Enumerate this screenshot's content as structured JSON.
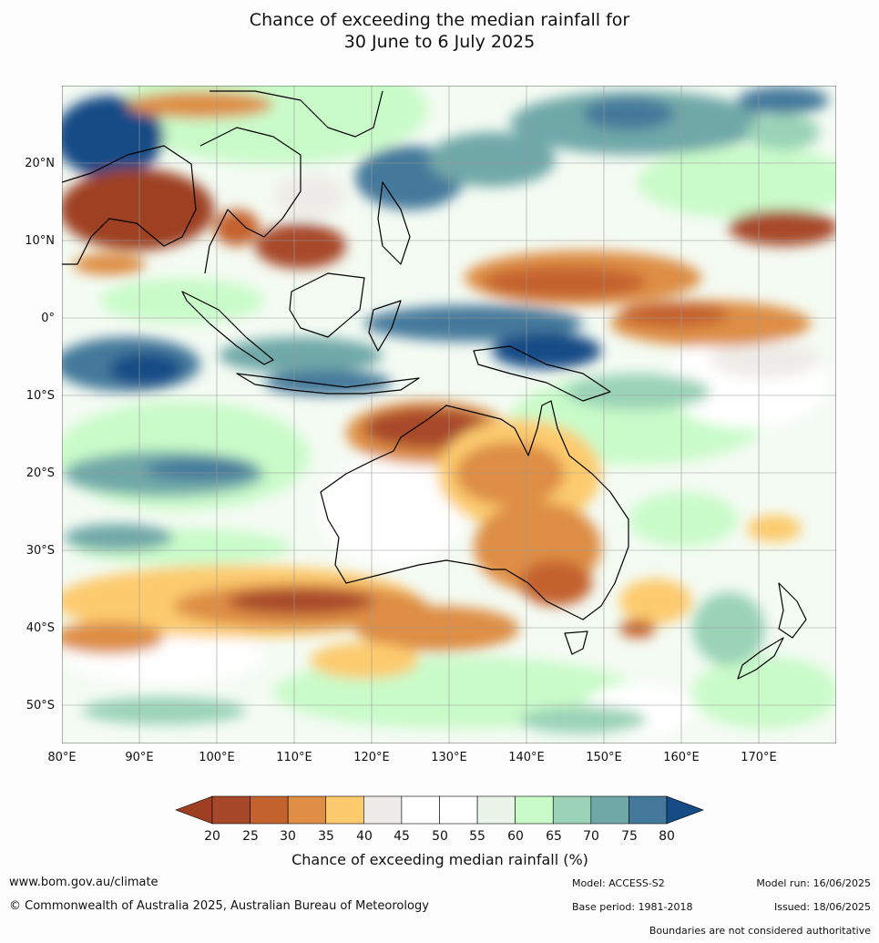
{
  "title_line1": "Chance of exceeding the median rainfall for",
  "title_line2": "30 June to 6 July 2025",
  "map": {
    "lon_range": [
      80,
      180
    ],
    "lat_range": [
      -55,
      30
    ],
    "lon_ticks": [
      "80°E",
      "90°E",
      "100°E",
      "110°E",
      "120°E",
      "130°E",
      "140°E",
      "150°E",
      "160°E",
      "170°E"
    ],
    "lat_ticks": [
      "20°N",
      "10°N",
      "0°",
      "10°S",
      "20°S",
      "30°S",
      "40°S",
      "50°S"
    ],
    "grid": true
  },
  "colorbar": {
    "label": "Chance of exceeding median rainfall (%)",
    "ticks": [
      "20",
      "25",
      "30",
      "35",
      "40",
      "45",
      "50",
      "55",
      "60",
      "65",
      "70",
      "75",
      "80"
    ],
    "colors": [
      "#9e3f23",
      "#a8482a",
      "#c4622e",
      "#de8e45",
      "#fdcb6e",
      "#eeece8",
      "#ffffff",
      "#ffffff",
      "#e8f5e8",
      "#c9fbc9",
      "#9ad3b6",
      "#70a8a8",
      "#45799b",
      "#154c86"
    ],
    "extend": "both"
  },
  "footer": {
    "website": "www.bom.gov.au/climate",
    "copyright": "© Commonwealth of Australia 2025, Australian Bureau of Meteorology",
    "model": "Model: ACCESS-S2",
    "base_period": "Base period: 1981-2018",
    "model_run": "Model run: 16/06/2025",
    "issued": "Issued: 18/06/2025",
    "disclaimer": "Boundaries are not considered authoritative"
  }
}
